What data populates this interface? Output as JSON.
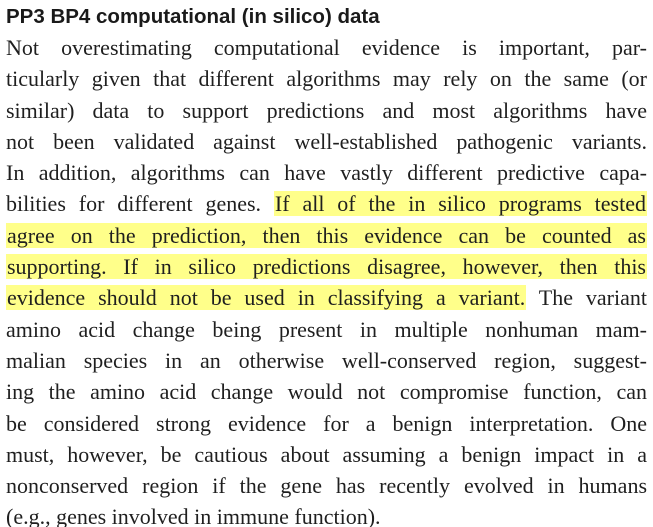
{
  "section": {
    "heading": "PP3 BP4 computational (in silico) data",
    "highlight_color": "#ffff8a",
    "lines": [
      {
        "pre": "Not overestimating computational evidence is important, par-",
        "hl": "",
        "post": ""
      },
      {
        "pre": "ticularly given that different algorithms may rely on the same (or",
        "hl": "",
        "post": ""
      },
      {
        "pre": "similar) data to support predictions and most algorithms have",
        "hl": "",
        "post": ""
      },
      {
        "pre": "not been validated against well-established pathogenic variants.",
        "hl": "",
        "post": ""
      },
      {
        "pre": "In addition, algorithms can have vastly different predictive capa-",
        "hl": "",
        "post": ""
      },
      {
        "pre": "bilities for different genes. ",
        "hl": "If all of the in silico programs tested",
        "post": ""
      },
      {
        "pre": "",
        "hl": "agree on the prediction, then this evidence can be counted as",
        "post": ""
      },
      {
        "pre": "",
        "hl": "supporting. If in silico predictions disagree, however, then this",
        "post": ""
      },
      {
        "pre": "",
        "hl": "evidence should not be used in classifying a variant.",
        "post": " The variant"
      },
      {
        "pre": "amino acid change being present in multiple nonhuman mam-",
        "hl": "",
        "post": ""
      },
      {
        "pre": "malian species in an otherwise well-conserved region, suggest-",
        "hl": "",
        "post": ""
      },
      {
        "pre": "ing the amino acid change would not compromise function, can",
        "hl": "",
        "post": ""
      },
      {
        "pre": "be considered strong evidence for a benign interpretation. One",
        "hl": "",
        "post": ""
      },
      {
        "pre": "must, however, be cautious about assuming a benign impact in a",
        "hl": "",
        "post": ""
      },
      {
        "pre": "nonconserved region if the gene has recently evolved in humans",
        "hl": "",
        "post": ""
      },
      {
        "pre": "(e.g., genes involved in immune function).",
        "hl": "",
        "post": ""
      }
    ]
  }
}
